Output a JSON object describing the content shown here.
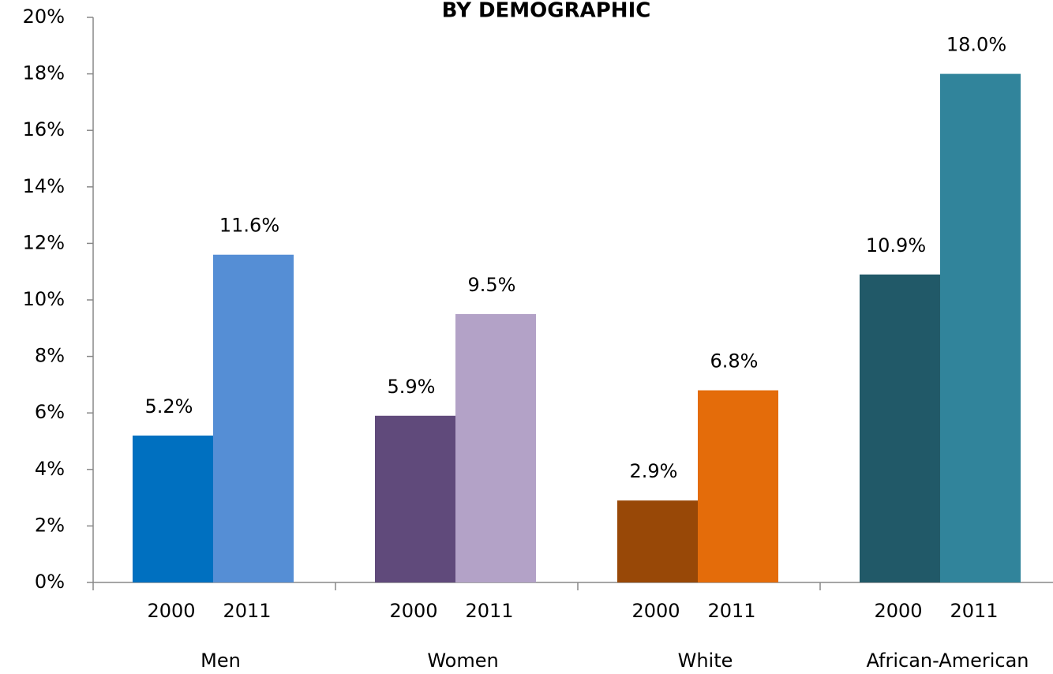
{
  "chart_data": {
    "type": "bar",
    "title": "BY DEMOGRAPHIC",
    "categories": [
      "Men",
      "Women",
      "White",
      "African-American"
    ],
    "series": [
      {
        "name": "2000",
        "colors": [
          "#0070c0",
          "#604a7b",
          "#984807",
          "#215968"
        ],
        "values": [
          5.2,
          5.9,
          2.9,
          10.9
        ],
        "value_labels": [
          "5.2%",
          "5.9%",
          "2.9%",
          "10.9%"
        ]
      },
      {
        "name": "2011",
        "colors": [
          "#558ed5",
          "#b3a2c7",
          "#e46c0a",
          "#31849b"
        ],
        "values": [
          11.6,
          9.5,
          6.8,
          18.0
        ],
        "value_labels": [
          "11.6%",
          "9.5%",
          "6.8%",
          "18.0%"
        ]
      }
    ],
    "ylim": [
      0,
      20
    ],
    "yticks": [
      {
        "value": 0,
        "label": "0%"
      },
      {
        "value": 2,
        "label": "2%"
      },
      {
        "value": 4,
        "label": "4%"
      },
      {
        "value": 6,
        "label": "6%"
      },
      {
        "value": 8,
        "label": "8%"
      },
      {
        "value": 10,
        "label": "10%"
      },
      {
        "value": 12,
        "label": "12%"
      },
      {
        "value": 14,
        "label": "14%"
      },
      {
        "value": 16,
        "label": "16%"
      },
      {
        "value": 18,
        "label": "18%"
      },
      {
        "value": 20,
        "label": "20%"
      }
    ],
    "grid": false
  }
}
